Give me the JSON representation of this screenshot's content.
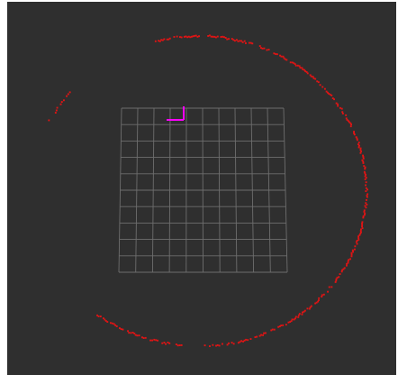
{
  "viewport": {
    "background": "#2f2f2f"
  },
  "scene": {
    "grid": {
      "rows": 10,
      "cols": 10,
      "line_color": "#6e6e6e"
    },
    "laser_scan": {
      "color": "#e01414",
      "shape": "partial-ring"
    },
    "robot_axes": {
      "x_axis_color": "#ff00ff",
      "y_axis_color": "#ff00ff"
    }
  }
}
